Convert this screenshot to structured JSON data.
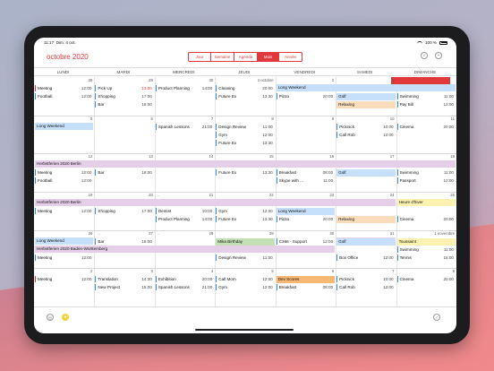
{
  "status": {
    "time": "11:17",
    "date": "Dim. 4 oct.",
    "battery": "100 %"
  },
  "header": {
    "month": "octobre",
    "year": "2020"
  },
  "views": [
    "Jour",
    "Semaine",
    "Agenda",
    "Mois",
    "Année"
  ],
  "active_view": "Mois",
  "weekdays": [
    "LUNDI",
    "MARDI",
    "MERCREDI",
    "JEUDI",
    "VENDREDI",
    "SAMEDI",
    "DIMANCHE"
  ],
  "colors": {
    "accent": "#e0383b",
    "blue": "#3a8ee0",
    "week_bar": "#c6dffa",
    "school": "#e5cfe8",
    "golf": "#c6dffa",
    "relaxing": "#fbdcbc",
    "yellow": "#fbf1b0",
    "green": "#c3e1b5",
    "orange": "#f6b873"
  },
  "weeks": [
    {
      "days": [
        "28",
        "29",
        "30",
        "1 octobre",
        "2",
        "3",
        "4"
      ],
      "bars": [
        {
          "label": "Long Weekend",
          "start": 4,
          "end": 6,
          "color": "#c6dffa"
        }
      ],
      "events": [
        {
          "day": 0,
          "row": 0,
          "title": "Meeting",
          "time": "12:00",
          "bar": "#e0383b"
        },
        {
          "day": 0,
          "row": 1,
          "title": "Football",
          "time": "12:00"
        },
        {
          "day": 1,
          "row": 0,
          "title": "Pick Up",
          "time": "13:00",
          "timecolor": "#e0383b"
        },
        {
          "day": 1,
          "row": 1,
          "title": "Shopping",
          "time": "17:00"
        },
        {
          "day": 1,
          "row": 2,
          "title": "Bar",
          "time": "18:00"
        },
        {
          "day": 2,
          "row": 0,
          "title": "Product Planning",
          "time": "14:00"
        },
        {
          "day": 3,
          "row": 0,
          "title": "Cleaning",
          "time": "20:00"
        },
        {
          "day": 3,
          "row": 1,
          "title": "Future Ex",
          "time": "13:30"
        },
        {
          "day": 4,
          "row": 1,
          "title": "Pizza",
          "time": "20:00"
        },
        {
          "day": 5,
          "row": 1,
          "title": "Golf",
          "time": "",
          "block": "#c6dffa"
        },
        {
          "day": 5,
          "row": 2,
          "title": "Relaxing",
          "time": "",
          "block": "#fbdcbc"
        },
        {
          "day": 6,
          "row": 1,
          "title": "Swimming",
          "time": "11:00"
        },
        {
          "day": 6,
          "row": 2,
          "title": "Pay Bill",
          "time": "13:00"
        }
      ]
    },
    {
      "days": [
        "5",
        "6",
        "7",
        "8",
        "9",
        "10",
        "11"
      ],
      "bars": [
        {
          "label": "Long Weekend",
          "start": 0,
          "end": 0,
          "color": "#c6dffa"
        }
      ],
      "events": [
        {
          "day": 2,
          "row": 0,
          "title": "Spanish Lessons",
          "time": "21:00"
        },
        {
          "day": 3,
          "row": 0,
          "title": "Design Review",
          "time": "11:00"
        },
        {
          "day": 3,
          "row": 1,
          "title": "Gym",
          "time": "12:00"
        },
        {
          "day": 3,
          "row": 2,
          "title": "Future Ex",
          "time": "13:30"
        },
        {
          "day": 5,
          "row": 0,
          "title": "Picknick",
          "time": "10:00"
        },
        {
          "day": 5,
          "row": 1,
          "title": "Call Rob",
          "time": "12:00"
        },
        {
          "day": 6,
          "row": 0,
          "title": "Cinema",
          "time": "20:00"
        }
      ]
    },
    {
      "days": [
        "12",
        "13",
        "14",
        "15",
        "16",
        "17",
        "18"
      ],
      "bars": [
        {
          "label": "Herbstferien 2020 Berlin",
          "start": 0,
          "end": 6,
          "color": "#e5cfe8"
        }
      ],
      "events": [
        {
          "day": 0,
          "row": 1,
          "title": "Meeting",
          "time": "12:00"
        },
        {
          "day": 0,
          "row": 2,
          "title": "Football",
          "time": "12:00"
        },
        {
          "day": 1,
          "row": 1,
          "title": "Bar",
          "time": "18:00"
        },
        {
          "day": 3,
          "row": 1,
          "title": "Future Ex",
          "time": "13:30"
        },
        {
          "day": 4,
          "row": 1,
          "title": "Breakfast",
          "time": "08:00"
        },
        {
          "day": 4,
          "row": 2,
          "title": "Skype with ...",
          "time": "11:00"
        },
        {
          "day": 5,
          "row": 1,
          "title": "Golf",
          "time": "",
          "block": "#c6dffa"
        },
        {
          "day": 6,
          "row": 1,
          "title": "Swimming",
          "time": "11:00"
        },
        {
          "day": 6,
          "row": 2,
          "title": "Passport",
          "time": "12:00"
        }
      ]
    },
    {
      "days": [
        "19",
        "20",
        "21",
        "22",
        "23",
        "24",
        "25"
      ],
      "bars": [
        {
          "label": "Herbstferien 2020 Berlin",
          "start": 0,
          "end": 5,
          "color": "#e5cfe8"
        },
        {
          "label": "Heure d'hiver",
          "start": 6,
          "end": 6,
          "color": "#fbf1b0"
        }
      ],
      "events": [
        {
          "day": 0,
          "row": 1,
          "title": "Meeting",
          "time": "12:00"
        },
        {
          "day": 1,
          "row": 1,
          "title": "Shopping",
          "time": "17:00"
        },
        {
          "day": 2,
          "row": 1,
          "title": "Dentist",
          "time": "10:00"
        },
        {
          "day": 2,
          "row": 2,
          "title": "Product Planning",
          "time": "14:00"
        },
        {
          "day": 3,
          "row": 1,
          "title": "Gym",
          "time": "12:00"
        },
        {
          "day": 3,
          "row": 2,
          "title": "Future Ex",
          "time": "13:30"
        },
        {
          "day": 4,
          "row": 1,
          "title": "Long Weekend",
          "time": "",
          "block": "#c6dffa"
        },
        {
          "day": 4,
          "row": 2,
          "title": "Pizza",
          "time": "20:00"
        },
        {
          "day": 5,
          "row": 2,
          "title": "Relaxing",
          "time": "",
          "block": "#fbdcbc"
        },
        {
          "day": 6,
          "row": 2,
          "title": "Cinema",
          "time": "20:00"
        }
      ]
    },
    {
      "days": [
        "26",
        "27",
        "28",
        "29",
        "30",
        "31",
        "1 novembre"
      ],
      "bars": [
        {
          "label": "Long Weekend",
          "start": 0,
          "end": 0,
          "color": "#c6dffa"
        },
        {
          "label": "Herbstferien 2020 Baden-Württemberg",
          "start": 0,
          "end": 4,
          "color": "#e5cfe8"
        },
        {
          "label": "Herbstferien 2020 Bad...",
          "start": 5,
          "end": 5,
          "color": "#e5cfe8"
        }
      ],
      "events": [
        {
          "day": 1,
          "row": 0,
          "title": "Bar",
          "time": "18:00"
        },
        {
          "day": 3,
          "row": 0,
          "title": "Mika Birthday",
          "time": "",
          "block": "#c3e1b5"
        },
        {
          "day": 4,
          "row": 0,
          "title": "C366 - Support",
          "time": "12:00"
        },
        {
          "day": 5,
          "row": 0,
          "title": "Golf",
          "time": "",
          "block": "#c6dffa"
        },
        {
          "day": 6,
          "row": 0,
          "title": "Toussaint",
          "time": "",
          "block": "#fbf1b0"
        },
        {
          "day": 6,
          "row": 1,
          "title": "Swimming",
          "time": "11:00"
        },
        {
          "day": 0,
          "row": 2,
          "title": "Meeting",
          "time": "12:00"
        },
        {
          "day": 3,
          "row": 2,
          "title": "Design Review",
          "time": "11:00"
        },
        {
          "day": 5,
          "row": 2,
          "title": "Box Office",
          "time": "12:00"
        },
        {
          "day": 6,
          "row": 2,
          "title": "Tennis",
          "time": "15:00"
        }
      ]
    },
    {
      "days": [
        "2",
        "3",
        "4",
        "5",
        "6",
        "7",
        "8"
      ],
      "bars": [],
      "events": [
        {
          "day": 0,
          "row": 0,
          "title": "Meeting",
          "time": "12:00",
          "bar": "#e0383b"
        },
        {
          "day": 1,
          "row": 0,
          "title": "Translation",
          "time": "14:30"
        },
        {
          "day": 1,
          "row": 1,
          "title": "New Project",
          "time": "15:00"
        },
        {
          "day": 2,
          "row": 0,
          "title": "Exhibition",
          "time": "20:00"
        },
        {
          "day": 2,
          "row": 1,
          "title": "Spanish Lessons",
          "time": "21:00"
        },
        {
          "day": 3,
          "row": 0,
          "title": "Call Mom",
          "time": "12:00"
        },
        {
          "day": 3,
          "row": 1,
          "title": "Gym",
          "time": "12:00"
        },
        {
          "day": 4,
          "row": 0,
          "title": "Dev Scores",
          "time": "",
          "block": "#f6b873"
        },
        {
          "day": 4,
          "row": 1,
          "title": "Breakfast",
          "time": "08:00"
        },
        {
          "day": 5,
          "row": 0,
          "title": "Picknick",
          "time": "10:00"
        },
        {
          "day": 5,
          "row": 1,
          "title": "Call Rob",
          "time": "12:00"
        },
        {
          "day": 6,
          "row": 0,
          "title": "Cinema",
          "time": "20:00"
        }
      ]
    }
  ],
  "more": "..."
}
